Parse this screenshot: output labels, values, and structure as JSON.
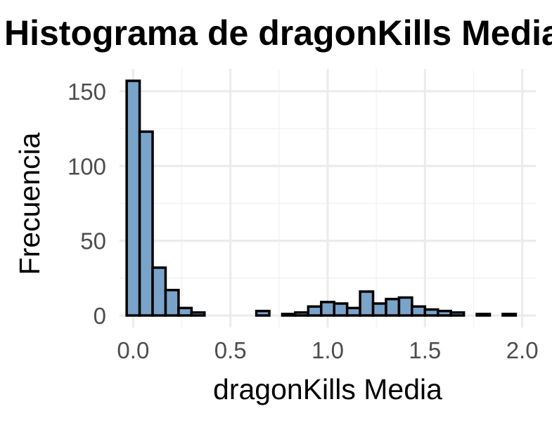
{
  "chart_data": {
    "type": "bar",
    "title": "Histograma de dragonKills Media",
    "xlabel": "dragonKills Media",
    "ylabel": "Frecuencia",
    "xlim": [
      -0.07,
      2.07
    ],
    "ylim": [
      -8,
      165
    ],
    "x_ticks": [
      0.0,
      0.5,
      1.0,
      1.5,
      2.0
    ],
    "x_tick_labels": [
      "0.0",
      "0.5",
      "1.0",
      "1.5",
      "2.0"
    ],
    "y_ticks": [
      0,
      50,
      100,
      150
    ],
    "y_tick_labels": [
      "0",
      "50",
      "100",
      "150"
    ],
    "grid": true,
    "legend": "none",
    "bar_fill": "#7aa3c9",
    "bar_outline": "#000000",
    "bin_width": 0.0667,
    "bin_centers": [
      0.0,
      0.0667,
      0.1333,
      0.2,
      0.2667,
      0.3333,
      0.4,
      0.4667,
      0.5333,
      0.6,
      0.6667,
      0.7333,
      0.8,
      0.8667,
      0.9333,
      1.0,
      1.0667,
      1.1333,
      1.2,
      1.2667,
      1.3333,
      1.4,
      1.4667,
      1.5333,
      1.6,
      1.6667,
      1.7333,
      1.8,
      1.8667,
      1.9333,
      2.0
    ],
    "values": [
      157,
      123,
      32,
      17,
      5,
      2,
      0,
      0,
      0,
      0,
      3,
      0,
      1,
      2,
      6,
      9,
      8,
      5,
      16,
      8,
      11,
      12,
      6,
      4,
      3,
      2,
      0,
      1,
      0,
      1,
      0
    ]
  }
}
